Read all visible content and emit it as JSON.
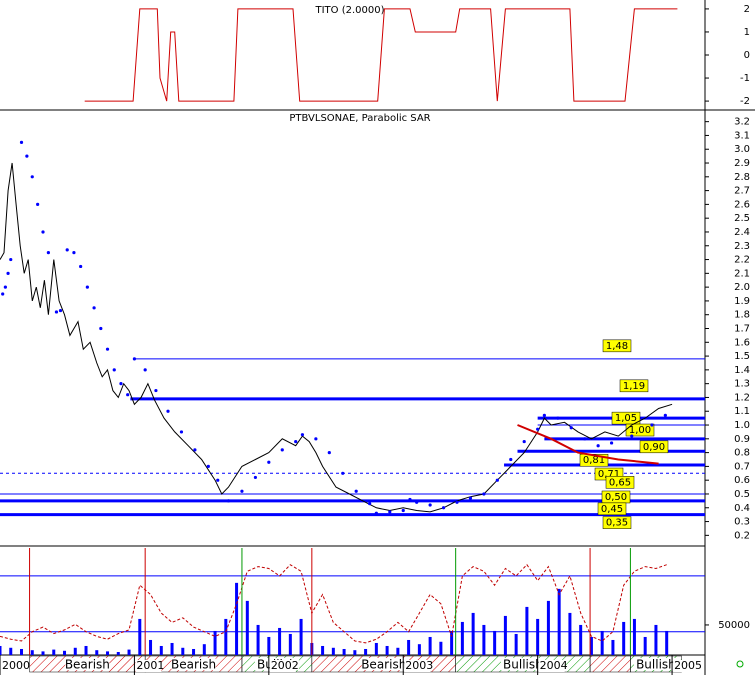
{
  "chart_data": [
    {
      "type": "line",
      "title": "TITO (2.0000)",
      "color": "#d00000",
      "xlim": [
        2000,
        2005.245
      ],
      "ylim": [
        -2.3,
        2.3
      ],
      "yticks": [
        2,
        1,
        0,
        -1,
        -2
      ],
      "x": [
        2000.63,
        2000.99,
        2001.04,
        2001.17,
        2001.19,
        2001.24,
        2001.27,
        2001.3,
        2001.33,
        2001.74,
        2001.77,
        2002.18,
        2002.23,
        2002.81,
        2002.86,
        2003.05,
        2003.09,
        2003.39,
        2003.42,
        2003.65,
        2003.7,
        2003.76,
        2004.24,
        2004.27,
        2004.65,
        2004.72,
        2005.04
      ],
      "values": [
        -2,
        -2,
        2,
        2,
        -1,
        -2,
        1,
        1,
        -2,
        -2,
        2,
        2,
        -2,
        -2,
        2,
        2,
        1,
        1,
        2,
        2,
        -2,
        2,
        2,
        -2,
        -2,
        2,
        2
      ]
    },
    {
      "type": "line",
      "title": "PTBVLSONAE, Parabolic SAR",
      "xlim": [
        2000,
        2005.245
      ],
      "ylim": [
        0.13,
        3.27
      ],
      "yticks": [
        0.2,
        0.3,
        0.4,
        0.5,
        0.6,
        0.7,
        0.8,
        0.9,
        {
          "value": 1,
          "label": "1.0"
        },
        1.1,
        1.2,
        1.3,
        1.4,
        1.5,
        1.6,
        1.7,
        1.8,
        1.9,
        {
          "value": 2,
          "label": "2.0"
        },
        2.1,
        2.2,
        2.3,
        2.4,
        2.5,
        2.6,
        2.7,
        2.8,
        2.9,
        {
          "value": 3,
          "label": "3.0"
        },
        3.1,
        3.2
      ],
      "series": [
        {
          "color": "#000000",
          "marker": "line",
          "x": [
            2000.0,
            2000.03,
            2000.06,
            2000.09,
            2000.12,
            2000.15,
            2000.18,
            2000.21,
            2000.24,
            2000.27,
            2000.3,
            2000.33,
            2000.36,
            2000.4,
            2000.44,
            2000.48,
            2000.52,
            2000.58,
            2000.62,
            2000.67,
            2000.72,
            2000.76,
            2000.8,
            2000.84,
            2000.88,
            2000.92,
            2000.96,
            2001.0,
            2001.05,
            2001.1,
            2001.15,
            2001.22,
            2001.3,
            2001.4,
            2001.5,
            2001.6,
            2001.65,
            2001.7,
            2001.8,
            2001.9,
            2002.0,
            2002.1,
            2002.2,
            2002.25,
            2002.3,
            2002.35,
            2002.4,
            2002.5,
            2002.6,
            2002.7,
            2002.8,
            2002.9,
            2003.0,
            2003.1,
            2003.2,
            2003.3,
            2003.4,
            2003.5,
            2003.6,
            2003.7,
            2003.8,
            2003.9,
            2004.0,
            2004.05,
            2004.1,
            2004.2,
            2004.3,
            2004.4,
            2004.5,
            2004.6,
            2004.7,
            2004.8,
            2004.9,
            2005.0
          ],
          "values": [
            2.2,
            2.25,
            2.7,
            2.9,
            2.6,
            2.3,
            2.1,
            2.2,
            1.9,
            2.0,
            1.85,
            2.05,
            1.8,
            2.2,
            1.9,
            1.8,
            1.65,
            1.75,
            1.55,
            1.6,
            1.45,
            1.35,
            1.4,
            1.25,
            1.2,
            1.3,
            1.25,
            1.15,
            1.2,
            1.3,
            1.18,
            1.05,
            0.95,
            0.85,
            0.75,
            0.6,
            0.5,
            0.55,
            0.7,
            0.75,
            0.8,
            0.9,
            0.85,
            0.92,
            0.88,
            0.8,
            0.7,
            0.55,
            0.5,
            0.45,
            0.4,
            0.38,
            0.4,
            0.38,
            0.37,
            0.4,
            0.45,
            0.48,
            0.5,
            0.6,
            0.7,
            0.8,
            0.95,
            1.05,
            1.0,
            1.02,
            0.95,
            0.9,
            0.95,
            0.92,
            1.0,
            1.05,
            1.12,
            1.15
          ]
        },
        {
          "color": "#0000ff",
          "marker": "dots",
          "x": [
            2000.02,
            2000.04,
            2000.06,
            2000.08,
            2000.16,
            2000.2,
            2000.24,
            2000.28,
            2000.32,
            2000.36,
            2000.42,
            2000.45,
            2000.5,
            2000.55,
            2000.6,
            2000.65,
            2000.7,
            2000.75,
            2000.8,
            2000.85,
            2000.9,
            2000.95,
            2001.0,
            2001.08,
            2001.16,
            2001.25,
            2001.35,
            2001.45,
            2001.55,
            2001.62,
            2001.7,
            2001.8,
            2001.9,
            2002.0,
            2002.1,
            2002.2,
            2002.25,
            2002.35,
            2002.45,
            2002.55,
            2002.65,
            2002.75,
            2002.8,
            2002.9,
            2003.0,
            2003.05,
            2003.1,
            2003.2,
            2003.3,
            2003.4,
            2003.5,
            2003.6,
            2003.7,
            2003.8,
            2003.9,
            2004.0,
            2004.05,
            2004.15,
            2004.25,
            2004.35,
            2004.45,
            2004.55,
            2004.7,
            2004.85,
            2004.95
          ],
          "values": [
            1.95,
            2.0,
            2.1,
            2.2,
            3.05,
            2.95,
            2.8,
            2.6,
            2.4,
            2.25,
            1.82,
            1.83,
            2.27,
            2.25,
            2.15,
            2.0,
            1.85,
            1.7,
            1.55,
            1.4,
            1.3,
            1.22,
            1.48,
            1.4,
            1.25,
            1.1,
            0.95,
            0.82,
            0.7,
            0.6,
            0.45,
            0.52,
            0.62,
            0.73,
            0.82,
            0.88,
            0.93,
            0.9,
            0.8,
            0.65,
            0.52,
            0.43,
            0.36,
            0.37,
            0.38,
            0.46,
            0.44,
            0.42,
            0.4,
            0.44,
            0.47,
            0.5,
            0.6,
            0.75,
            0.88,
            0.97,
            1.07,
            1.05,
            0.98,
            0.9,
            0.85,
            0.87,
            0.92,
            1.0,
            1.07
          ]
        },
        {
          "color": "#d00000",
          "marker": "line",
          "x": [
            2003.85,
            2004.1,
            2004.3,
            2004.6,
            2004.9
          ],
          "values": [
            1.0,
            0.9,
            0.8,
            0.75,
            0.72
          ]
        }
      ],
      "levels": {
        "values": [
          1.48,
          1.19,
          1.05,
          1.0,
          0.9,
          0.81,
          0.71,
          0.65,
          0.5,
          0.45,
          0.35
        ],
        "value_labels": [
          "1,48",
          "1,19",
          "1,05",
          "1,00",
          "0,90",
          "0,81",
          "0,71",
          "0,65",
          "0,50",
          "0,45",
          "0,35"
        ],
        "from": [
          2001.0,
          2000.97,
          2004.0,
          2004.0,
          2004.05,
          2003.85,
          2003.75,
          2000.0,
          2000.0,
          2000.0,
          2000.0
        ],
        "styles": [
          "thin",
          "thick",
          "thick",
          "thin",
          "thick",
          "thick",
          "thick",
          "dashed",
          "thin",
          "thick",
          "thick"
        ],
        "color": "#0000ff",
        "label_color": "#ffff00"
      }
    },
    {
      "type": "bar",
      "xlim": [
        2000,
        2005.245
      ],
      "ylim": [
        0,
        178000
      ],
      "yticks": [
        50000
      ],
      "y2lim": [
        -5,
        110
      ],
      "y2grid": [
        20,
        80
      ],
      "xticks": [
        2000,
        2001,
        2002,
        2003,
        2004,
        2005
      ],
      "x": [
        2000.0,
        2000.08,
        2000.16,
        2000.24,
        2000.32,
        2000.4,
        2000.48,
        2000.56,
        2000.64,
        2000.72,
        2000.8,
        2000.88,
        2000.96,
        2001.04,
        2001.12,
        2001.2,
        2001.28,
        2001.36,
        2001.44,
        2001.52,
        2001.6,
        2001.68,
        2001.76,
        2001.84,
        2001.92,
        2002.0,
        2002.08,
        2002.16,
        2002.24,
        2002.32,
        2002.4,
        2002.48,
        2002.56,
        2002.64,
        2002.72,
        2002.8,
        2002.88,
        2002.96,
        2003.04,
        2003.12,
        2003.2,
        2003.28,
        2003.36,
        2003.44,
        2003.52,
        2003.6,
        2003.68,
        2003.76,
        2003.84,
        2003.92,
        2004.0,
        2004.08,
        2004.16,
        2004.24,
        2004.32,
        2004.4,
        2004.48,
        2004.56,
        2004.64,
        2004.72,
        2004.8,
        2004.88,
        2004.96
      ],
      "series": [
        {
          "color": "#0000ff",
          "values": [
            15000,
            12000,
            10000,
            8000,
            6000,
            9000,
            7000,
            12000,
            15000,
            8000,
            6000,
            5000,
            9000,
            60000,
            25000,
            15000,
            20000,
            12000,
            10000,
            18000,
            40000,
            60000,
            120000,
            90000,
            50000,
            30000,
            45000,
            35000,
            60000,
            20000,
            15000,
            12000,
            10000,
            8000,
            10000,
            20000,
            15000,
            12000,
            25000,
            18000,
            30000,
            22000,
            40000,
            55000,
            70000,
            50000,
            40000,
            65000,
            35000,
            80000,
            60000,
            90000,
            110000,
            70000,
            50000,
            30000,
            40000,
            25000,
            55000,
            60000,
            30000,
            50000,
            40000
          ]
        },
        {
          "color": "#c00000",
          "axis": "y2",
          "values": [
            15,
            12,
            10,
            20,
            25,
            18,
            22,
            28,
            20,
            15,
            12,
            18,
            22,
            70,
            60,
            40,
            30,
            35,
            25,
            20,
            15,
            20,
            50,
            85,
            90,
            88,
            80,
            92,
            85,
            40,
            60,
            30,
            20,
            10,
            8,
            12,
            20,
            30,
            20,
            40,
            60,
            50,
            15,
            80,
            90,
            85,
            70,
            88,
            80,
            92,
            75,
            90,
            60,
            80,
            40,
            15,
            10,
            20,
            70,
            85,
            90,
            88,
            92
          ]
        }
      ],
      "zones": {
        "from": [
          2000.22,
          2001.08,
          2001.8,
          2002.32,
          2003.39,
          2004.39,
          2004.69
        ],
        "to": [
          2001.08,
          2001.8,
          2002.32,
          2003.39,
          2004.39,
          2004.69,
          2005.07
        ],
        "labels": [
          "Bearish",
          "Bearish",
          "Bullish",
          "Bearish",
          "Bullish",
          null,
          "Bullish"
        ],
        "colors": [
          "#cc0000",
          "#cc0000",
          "#009900",
          "#cc0000",
          "#009900",
          "#cc0000",
          "#009900"
        ]
      }
    }
  ]
}
